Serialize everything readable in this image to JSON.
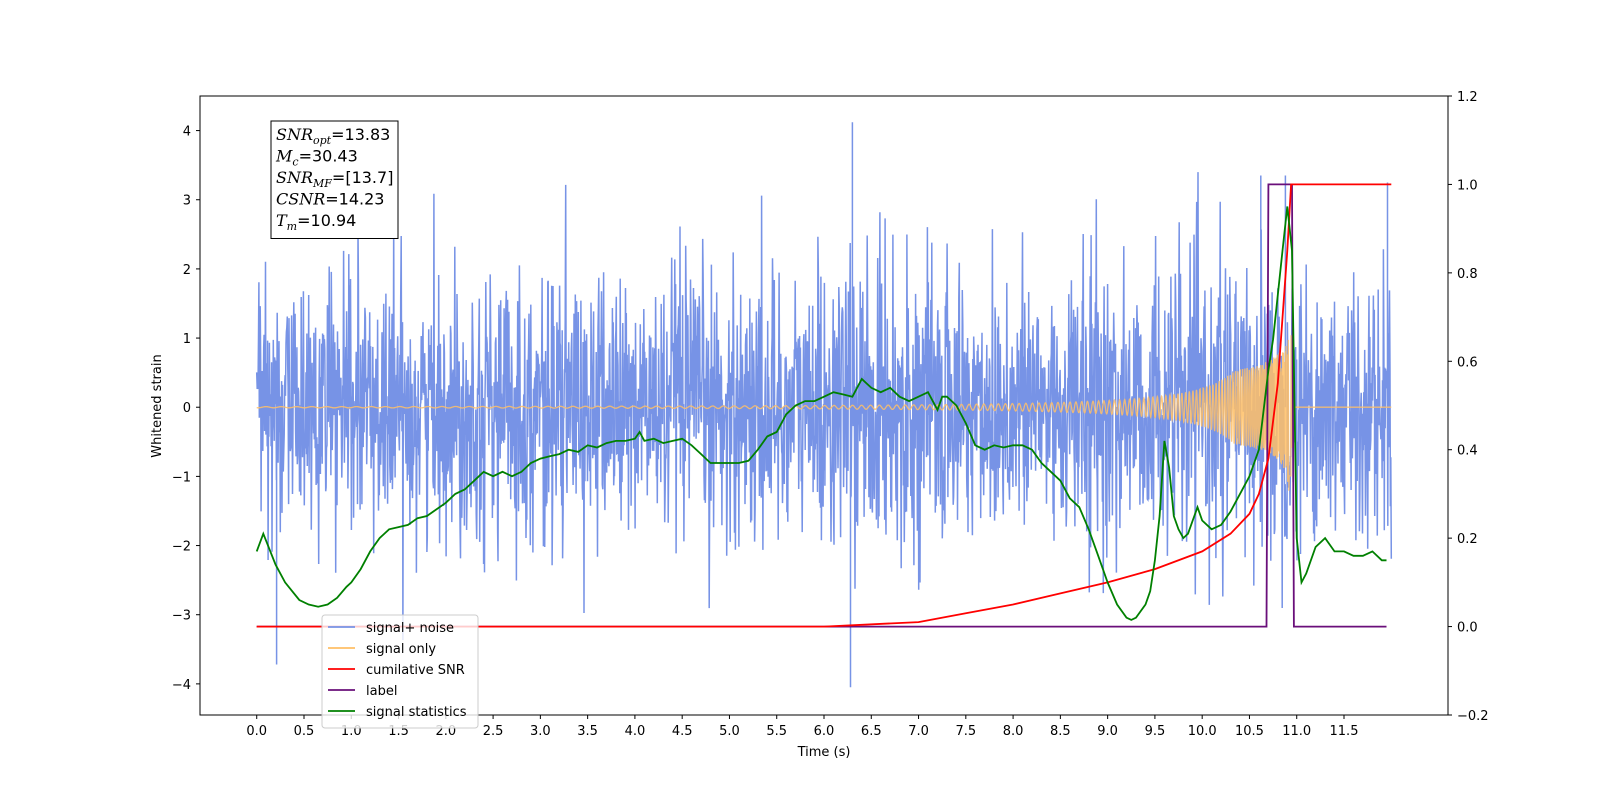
{
  "chart_data": {
    "type": "line",
    "xlabel": "Time (s)",
    "ylabel": "Whitened strain",
    "xlim": [
      -0.6,
      12.6
    ],
    "ylim": [
      -4.45,
      4.5
    ],
    "y2lim": [
      -0.2,
      1.2
    ],
    "x_ticks": [
      "0.0",
      "0.5",
      "1.0",
      "1.5",
      "2.0",
      "2.5",
      "3.0",
      "3.5",
      "4.0",
      "4.5",
      "5.0",
      "5.5",
      "6.0",
      "6.5",
      "7.0",
      "7.5",
      "8.0",
      "8.5",
      "9.0",
      "9.5",
      "10.0",
      "10.5",
      "11.0",
      "11.5"
    ],
    "y_ticks": [
      "−4",
      "−3",
      "−2",
      "−1",
      "0",
      "1",
      "2",
      "3",
      "4"
    ],
    "y2_ticks": [
      "−0.2",
      "0.0",
      "0.2",
      "0.4",
      "0.6",
      "0.8",
      "1.0",
      "1.2"
    ],
    "info_box": [
      {
        "base": "SNR",
        "sub": "opt",
        "rest": "=13.83"
      },
      {
        "base": "M",
        "sub": "c",
        "rest": "=30.43"
      },
      {
        "base": "SNR",
        "sub": "MF",
        "rest": "=[13.7]"
      },
      {
        "base": "CSNR",
        "sub": "",
        "rest": "=14.23"
      },
      {
        "base": "T",
        "sub": "m",
        "rest": "=10.94"
      }
    ],
    "legend": {
      "placement": "lower-left",
      "entries": [
        {
          "label": "signal+ noise",
          "color": "#7793e6"
        },
        {
          "label": "signal only",
          "color": "#ffbf66"
        },
        {
          "label": "cumilative SNR",
          "color": "#ff0000"
        },
        {
          "label": "label",
          "color": "#6a0f7a"
        },
        {
          "label": "signal statistics",
          "color": "#008000"
        }
      ]
    },
    "series": [
      {
        "name": "signal+ noise",
        "axis": "left",
        "color": "#7793e6",
        "x_range": [
          0.0,
          12.0
        ],
        "envelope": [
          [
            0.0,
            2.3
          ],
          [
            1.0,
            2.3
          ],
          [
            6.3,
            2.5
          ],
          [
            10.9,
            2.6
          ],
          [
            12.0,
            2.3
          ]
        ],
        "notable_peaks": [
          {
            "x": 6.3,
            "y": 4.12
          },
          {
            "x": 6.28,
            "y": -4.05
          },
          {
            "x": 0.21,
            "y": -3.72
          },
          {
            "x": 10.88,
            "y": 3.35
          },
          {
            "x": 10.62,
            "y": 3.35
          },
          {
            "x": 11.96,
            "y": 3.25
          }
        ]
      },
      {
        "name": "signal only",
        "axis": "left",
        "color": "#ffbf66",
        "x_range": [
          0.0,
          12.0
        ],
        "merger_time": 10.94,
        "peak_amplitude": 1.25
      },
      {
        "name": "cumilative SNR",
        "axis": "right",
        "color": "#ff0000",
        "x": [
          0.0,
          6.0,
          7.0,
          7.5,
          8.0,
          8.5,
          9.0,
          9.5,
          10.0,
          10.3,
          10.5,
          10.6,
          10.7,
          10.8,
          10.9,
          10.94,
          12.0
        ],
        "y": [
          0.0,
          0.0,
          0.01,
          0.03,
          0.05,
          0.075,
          0.1,
          0.13,
          0.17,
          0.21,
          0.255,
          0.3,
          0.38,
          0.55,
          0.85,
          1.0,
          1.0
        ]
      },
      {
        "name": "label",
        "axis": "right",
        "color": "#6a0f7a",
        "x": [
          0.0,
          10.68,
          10.7,
          10.82,
          10.84,
          10.95,
          10.97,
          11.95
        ],
        "y": [
          0.0,
          0.0,
          1.0,
          1.0,
          1.0,
          1.0,
          0.0,
          0.0
        ]
      },
      {
        "name": "signal statistics",
        "axis": "right",
        "color": "#008000",
        "x": [
          0.0,
          0.07,
          0.2,
          0.3,
          0.45,
          0.55,
          0.65,
          0.75,
          0.85,
          0.95,
          1.0,
          1.1,
          1.2,
          1.3,
          1.4,
          1.5,
          1.6,
          1.7,
          1.8,
          1.9,
          2.0,
          2.1,
          2.2,
          2.3,
          2.4,
          2.5,
          2.6,
          2.7,
          2.8,
          2.9,
          3.0,
          3.1,
          3.2,
          3.3,
          3.4,
          3.5,
          3.6,
          3.7,
          3.8,
          3.9,
          4.0,
          4.05,
          4.1,
          4.2,
          4.3,
          4.4,
          4.5,
          4.6,
          4.7,
          4.8,
          4.9,
          5.0,
          5.1,
          5.2,
          5.3,
          5.4,
          5.5,
          5.6,
          5.7,
          5.8,
          5.9,
          6.0,
          6.1,
          6.2,
          6.3,
          6.35,
          6.4,
          6.5,
          6.6,
          6.7,
          6.8,
          6.9,
          7.0,
          7.1,
          7.2,
          7.25,
          7.3,
          7.4,
          7.5,
          7.6,
          7.7,
          7.8,
          7.9,
          8.0,
          8.1,
          8.2,
          8.3,
          8.4,
          8.5,
          8.6,
          8.7,
          8.8,
          8.9,
          9.0,
          9.1,
          9.2,
          9.25,
          9.3,
          9.35,
          9.4,
          9.45,
          9.5,
          9.55,
          9.6,
          9.65,
          9.7,
          9.75,
          9.8,
          9.85,
          9.9,
          9.95,
          10.0,
          10.1,
          10.2,
          10.3,
          10.4,
          10.5,
          10.6,
          10.7,
          10.75,
          10.8,
          10.85,
          10.9,
          10.95,
          11.0,
          11.05,
          11.1,
          11.2,
          11.3,
          11.4,
          11.5,
          11.6,
          11.7,
          11.8,
          11.9,
          11.95
        ],
        "y": [
          0.17,
          0.21,
          0.14,
          0.1,
          0.06,
          0.05,
          0.045,
          0.05,
          0.065,
          0.09,
          0.1,
          0.13,
          0.17,
          0.2,
          0.22,
          0.225,
          0.23,
          0.245,
          0.25,
          0.265,
          0.28,
          0.3,
          0.31,
          0.33,
          0.35,
          0.34,
          0.35,
          0.34,
          0.35,
          0.37,
          0.38,
          0.385,
          0.39,
          0.4,
          0.395,
          0.41,
          0.405,
          0.415,
          0.42,
          0.42,
          0.425,
          0.44,
          0.42,
          0.425,
          0.415,
          0.42,
          0.425,
          0.41,
          0.39,
          0.37,
          0.37,
          0.37,
          0.37,
          0.375,
          0.4,
          0.43,
          0.44,
          0.48,
          0.5,
          0.51,
          0.51,
          0.52,
          0.53,
          0.525,
          0.52,
          0.54,
          0.56,
          0.54,
          0.53,
          0.54,
          0.52,
          0.51,
          0.52,
          0.53,
          0.49,
          0.52,
          0.52,
          0.5,
          0.46,
          0.41,
          0.4,
          0.41,
          0.405,
          0.41,
          0.41,
          0.4,
          0.37,
          0.35,
          0.33,
          0.29,
          0.27,
          0.22,
          0.16,
          0.1,
          0.05,
          0.02,
          0.015,
          0.02,
          0.035,
          0.05,
          0.08,
          0.15,
          0.25,
          0.42,
          0.36,
          0.25,
          0.22,
          0.2,
          0.21,
          0.24,
          0.27,
          0.24,
          0.22,
          0.23,
          0.26,
          0.3,
          0.34,
          0.4,
          0.58,
          0.65,
          0.75,
          0.85,
          0.95,
          0.85,
          0.2,
          0.1,
          0.12,
          0.18,
          0.2,
          0.17,
          0.17,
          0.16,
          0.16,
          0.17,
          0.15,
          0.15
        ]
      }
    ]
  }
}
